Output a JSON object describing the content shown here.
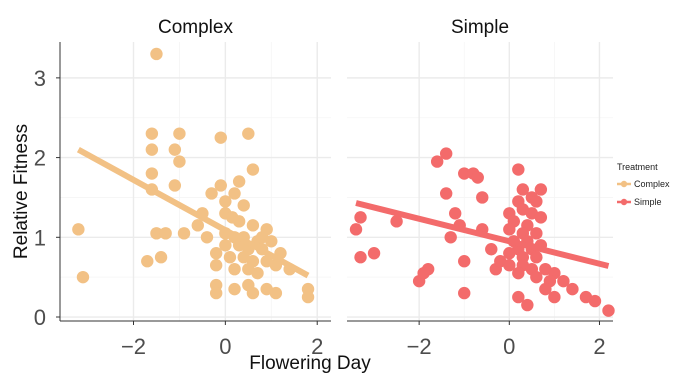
{
  "chart_data": {
    "type": "scatter",
    "xlabel": "Flowering Day",
    "ylabel": "Relative Fitness",
    "xlim": [
      -3.6,
      2.3
    ],
    "ylim": [
      -0.05,
      3.45
    ],
    "x_ticks": [
      -2,
      0,
      2
    ],
    "x_tick_labels": [
      "−2",
      "0",
      "2"
    ],
    "y_ticks": [
      0,
      1,
      2,
      3
    ],
    "y_tick_labels": [
      "0",
      "1",
      "2",
      "3"
    ],
    "grid": true,
    "legend": {
      "title": "Treatment",
      "placement": "right"
    },
    "colors": {
      "Complex": "#f2c185",
      "Simple": "#f36b6b"
    },
    "panels": [
      {
        "strip": "Complex",
        "series": "Complex",
        "points": [
          [
            -1.5,
            3.3
          ],
          [
            -1.0,
            2.3
          ],
          [
            -1.6,
            2.3
          ],
          [
            -1.1,
            2.1
          ],
          [
            -1.6,
            2.1
          ],
          [
            -1.0,
            1.95
          ],
          [
            -1.1,
            1.65
          ],
          [
            -1.6,
            1.8
          ],
          [
            -1.6,
            1.6
          ],
          [
            -1.5,
            1.05
          ],
          [
            -1.3,
            1.05
          ],
          [
            -0.9,
            1.05
          ],
          [
            -1.7,
            0.7
          ],
          [
            -1.4,
            0.75
          ],
          [
            -3.2,
            1.1
          ],
          [
            -3.1,
            0.5
          ],
          [
            -0.1,
            2.25
          ],
          [
            0.5,
            2.3
          ],
          [
            0.6,
            1.85
          ],
          [
            0.3,
            1.7
          ],
          [
            -0.1,
            1.65
          ],
          [
            0.2,
            1.55
          ],
          [
            -0.3,
            1.55
          ],
          [
            0.0,
            1.45
          ],
          [
            0.4,
            1.4
          ],
          [
            -0.5,
            1.3
          ],
          [
            -0.6,
            1.15
          ],
          [
            0.0,
            1.3
          ],
          [
            0.15,
            1.25
          ],
          [
            0.3,
            1.2
          ],
          [
            0.6,
            1.15
          ],
          [
            0.9,
            1.1
          ],
          [
            0.0,
            1.05
          ],
          [
            0.2,
            1.0
          ],
          [
            0.4,
            1.0
          ],
          [
            0.7,
            0.95
          ],
          [
            1.0,
            0.95
          ],
          [
            0.0,
            0.9
          ],
          [
            0.3,
            0.9
          ],
          [
            0.5,
            0.85
          ],
          [
            0.8,
            0.85
          ],
          [
            1.2,
            0.8
          ],
          [
            -0.2,
            0.8
          ],
          [
            0.1,
            0.75
          ],
          [
            0.4,
            0.75
          ],
          [
            0.6,
            0.7
          ],
          [
            0.9,
            0.7
          ],
          [
            1.1,
            0.65
          ],
          [
            -0.2,
            0.65
          ],
          [
            0.2,
            0.6
          ],
          [
            0.5,
            0.6
          ],
          [
            0.7,
            0.55
          ],
          [
            1.4,
            0.6
          ],
          [
            -0.2,
            0.4
          ],
          [
            -0.2,
            0.3
          ],
          [
            0.2,
            0.35
          ],
          [
            0.5,
            0.4
          ],
          [
            0.6,
            0.3
          ],
          [
            0.9,
            0.35
          ],
          [
            1.1,
            0.3
          ],
          [
            1.8,
            0.35
          ],
          [
            1.8,
            0.25
          ],
          [
            0.8,
            1.0
          ],
          [
            -0.4,
            1.0
          ]
        ],
        "fit": [
          [
            -3.2,
            2.1
          ],
          [
            1.8,
            0.52
          ]
        ]
      },
      {
        "strip": "Simple",
        "series": "Simple",
        "points": [
          [
            -1.4,
            2.05
          ],
          [
            -1.6,
            1.95
          ],
          [
            -1.0,
            1.8
          ],
          [
            -0.8,
            1.8
          ],
          [
            -0.7,
            1.75
          ],
          [
            -1.4,
            1.55
          ],
          [
            -0.6,
            1.5
          ],
          [
            -1.2,
            1.3
          ],
          [
            -1.1,
            1.15
          ],
          [
            -1.3,
            1.0
          ],
          [
            -1.0,
            0.7
          ],
          [
            -0.6,
            1.1
          ],
          [
            -0.4,
            0.85
          ],
          [
            -0.3,
            0.6
          ],
          [
            -0.2,
            0.7
          ],
          [
            0.2,
            1.85
          ],
          [
            0.3,
            1.6
          ],
          [
            0.7,
            1.6
          ],
          [
            0.5,
            1.5
          ],
          [
            0.2,
            1.45
          ],
          [
            0.6,
            1.45
          ],
          [
            0.3,
            1.35
          ],
          [
            0.0,
            1.3
          ],
          [
            0.5,
            1.3
          ],
          [
            0.7,
            1.25
          ],
          [
            0.1,
            1.2
          ],
          [
            0.4,
            1.15
          ],
          [
            0.0,
            1.1
          ],
          [
            0.3,
            1.05
          ],
          [
            0.6,
            1.05
          ],
          [
            0.1,
            0.95
          ],
          [
            0.4,
            0.95
          ],
          [
            0.7,
            0.9
          ],
          [
            0.2,
            0.85
          ],
          [
            0.5,
            0.85
          ],
          [
            0.0,
            0.8
          ],
          [
            0.3,
            0.75
          ],
          [
            0.6,
            0.75
          ],
          [
            0.0,
            0.65
          ],
          [
            0.3,
            0.65
          ],
          [
            0.5,
            0.6
          ],
          [
            0.8,
            0.6
          ],
          [
            0.2,
            0.55
          ],
          [
            0.6,
            0.5
          ],
          [
            1.0,
            0.55
          ],
          [
            0.9,
            0.45
          ],
          [
            1.2,
            0.45
          ],
          [
            0.8,
            0.35
          ],
          [
            1.4,
            0.35
          ],
          [
            0.2,
            0.25
          ],
          [
            0.4,
            0.15
          ],
          [
            1.0,
            0.25
          ],
          [
            1.7,
            0.25
          ],
          [
            1.9,
            0.2
          ],
          [
            2.2,
            0.08
          ],
          [
            -3.3,
            1.25
          ],
          [
            -3.4,
            1.1
          ],
          [
            -3.3,
            0.75
          ],
          [
            -3.0,
            0.8
          ],
          [
            -2.5,
            1.2
          ],
          [
            -2.0,
            0.45
          ],
          [
            -1.8,
            0.6
          ],
          [
            -1.9,
            0.55
          ],
          [
            -1.0,
            0.3
          ]
        ],
        "fit": [
          [
            -3.4,
            1.43
          ],
          [
            2.2,
            0.64
          ]
        ]
      }
    ]
  }
}
